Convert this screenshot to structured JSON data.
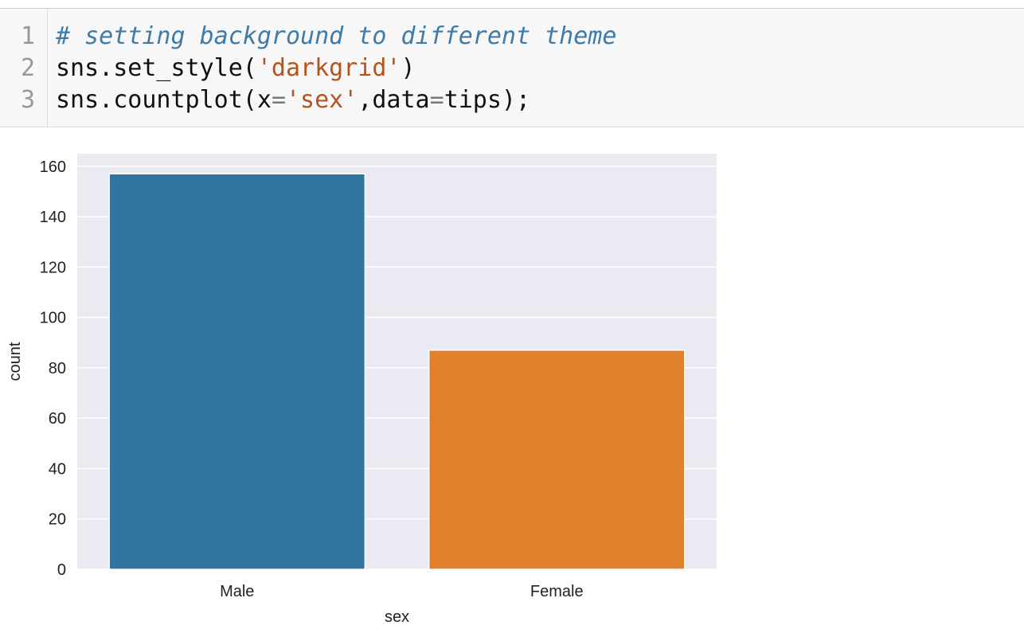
{
  "code_cell": {
    "line_numbers": [
      "1",
      "2",
      "3"
    ],
    "lines": [
      {
        "tokens": [
          {
            "text": "# setting background to different theme",
            "type": "comment"
          }
        ]
      },
      {
        "tokens": [
          {
            "text": "sns.set_style(",
            "type": "plain"
          },
          {
            "text": "'darkgrid'",
            "type": "string"
          },
          {
            "text": ")",
            "type": "plain"
          }
        ]
      },
      {
        "tokens": [
          {
            "text": "sns.countplot(x",
            "type": "plain"
          },
          {
            "text": "=",
            "type": "op"
          },
          {
            "text": "'sex'",
            "type": "string"
          },
          {
            "text": ",data",
            "type": "plain"
          },
          {
            "text": "=",
            "type": "op"
          },
          {
            "text": "tips);",
            "type": "plain"
          }
        ]
      }
    ]
  },
  "chart_data": {
    "type": "bar",
    "categories": [
      "Male",
      "Female"
    ],
    "values": [
      157,
      87
    ],
    "colors": [
      "#3274a1",
      "#e1812c"
    ],
    "title": "",
    "xlabel": "sex",
    "ylabel": "count",
    "ylim": [
      0,
      165
    ],
    "yticks": [
      0,
      20,
      40,
      60,
      80,
      100,
      120,
      140,
      160
    ],
    "grid": true,
    "background": "#eaeaf2"
  }
}
